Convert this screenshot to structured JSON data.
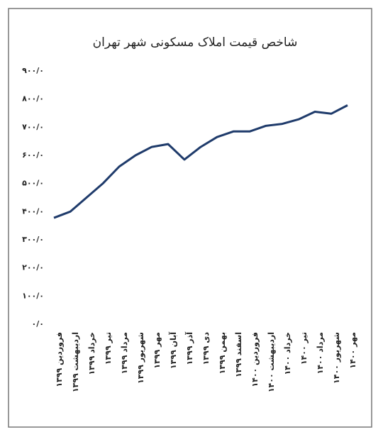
{
  "chart_data": {
    "type": "line",
    "title": "شاخص قیمت املاک مسکونی شهر تهران",
    "categories": [
      "فروردین ۱۳۹۹",
      "اردیبهشت ۱۳۹۹",
      "خرداد ۱۳۹۹",
      "تیر ۱۳۹۹",
      "مرداد ۱۳۹۹",
      "شهریور ۱۳۹۹",
      "مهر ۱۳۹۹",
      "آبان ۱۳۹۹",
      "آذر ۱۳۹۹",
      "دی ۱۳۹۹",
      "بهمن ۱۳۹۹",
      "اسفند ۱۳۹۹",
      "فروردین ۱۴۰۰",
      "اردیبهشت ۱۴۰۰",
      "خرداد ۱۴۰۰",
      "تیر ۱۴۰۰",
      "مرداد ۱۴۰۰",
      "شهریور ۱۴۰۰",
      "مهر ۱۴۰۰"
    ],
    "series": [
      {
        "color": "#1f3b6b",
        "values": [
          378,
          400,
          450,
          500,
          560,
          600,
          630,
          640,
          585,
          630,
          665,
          685,
          685,
          705,
          712,
          728,
          755,
          748,
          778
        ]
      }
    ],
    "ylim": [
      0,
      900
    ],
    "yticks": [
      {
        "value": 0,
        "label": "۰/۰"
      },
      {
        "value": 100,
        "label": "۱۰۰/۰"
      },
      {
        "value": 200,
        "label": "۲۰۰/۰"
      },
      {
        "value": 300,
        "label": "۳۰۰/۰"
      },
      {
        "value": 400,
        "label": "۴۰۰/۰"
      },
      {
        "value": 500,
        "label": "۵۰۰/۰"
      },
      {
        "value": 600,
        "label": "۶۰۰/۰"
      },
      {
        "value": 700,
        "label": "۷۰۰/۰"
      },
      {
        "value": 800,
        "label": "۸۰۰/۰"
      },
      {
        "value": 900,
        "label": "۹۰۰/۰"
      }
    ],
    "grid": false
  }
}
